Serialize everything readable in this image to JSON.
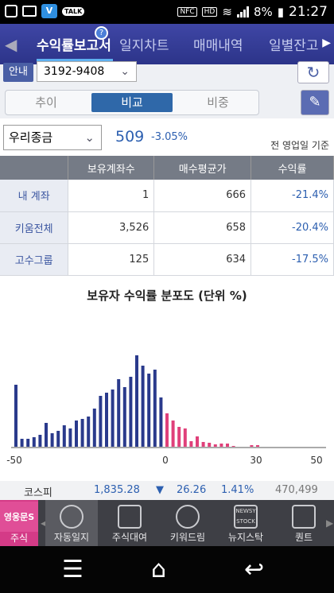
{
  "status": {
    "battery": "8%",
    "time": "21:27",
    "nfc": "NFC",
    "hd": "HD",
    "talk_label": "TALK"
  },
  "tabs": [
    {
      "label": "수익률보고서"
    },
    {
      "label": "일지차트"
    },
    {
      "label": "매매내역"
    },
    {
      "label": "일별잔고"
    }
  ],
  "tab_badge": "?",
  "account": {
    "guide": "안내",
    "number": "3192-9408"
  },
  "segments": [
    {
      "label": "추이"
    },
    {
      "label": "비교"
    },
    {
      "label": "비중"
    }
  ],
  "stock": {
    "name": "우리종금",
    "price": "509",
    "change": "-3.05%",
    "basis": "전 영업일 기준"
  },
  "table": {
    "headers": [
      "",
      "보유계좌수",
      "매수평균가",
      "수익률"
    ],
    "rows": [
      {
        "label": "내 계좌",
        "accounts": "1",
        "avg_price": "666",
        "return": "-21.4%"
      },
      {
        "label": "키움전체",
        "accounts": "3,526",
        "avg_price": "658",
        "return": "-20.4%"
      },
      {
        "label": "고수그룹",
        "accounts": "125",
        "avg_price": "634",
        "return": "-17.5%"
      }
    ]
  },
  "chart_title": "보유자 수익률 분포도 (단위 %)",
  "chart_data": {
    "type": "bar",
    "title": "보유자 수익률 분포도 (단위 %)",
    "xlim": [
      -50,
      50
    ],
    "x_ticks": [
      "-50",
      "0",
      "30",
      "50"
    ],
    "negative_color": "#2a3a8c",
    "positive_color": "#e0407a",
    "x": [
      -50,
      -48,
      -46,
      -44,
      -42,
      -40,
      -38,
      -36,
      -34,
      -32,
      -30,
      -28,
      -26,
      -24,
      -22,
      -20,
      -18,
      -16,
      -14,
      -12,
      -10,
      -8,
      -6,
      -4,
      -2,
      0,
      2,
      4,
      6,
      8,
      10,
      12,
      14,
      16,
      18,
      20,
      22,
      24,
      26,
      28,
      30,
      32,
      34,
      36,
      38,
      40,
      42,
      44,
      46,
      48
    ],
    "values": [
      78,
      10,
      10,
      12,
      15,
      30,
      17,
      20,
      27,
      23,
      33,
      35,
      38,
      48,
      64,
      68,
      72,
      85,
      75,
      88,
      115,
      102,
      92,
      97,
      62,
      42,
      33,
      25,
      23,
      7,
      13,
      6,
      5,
      3,
      4,
      4,
      1,
      0,
      0,
      2,
      2,
      0,
      0,
      0,
      0,
      0,
      0,
      0,
      0,
      0
    ]
  },
  "kospi": {
    "label": "코스피",
    "value": "1,835.28",
    "arrow": "▼",
    "change": "26.26",
    "percent": "1.41%",
    "volume": "470,499"
  },
  "bottom_nav": {
    "logo_text": "영웅문S",
    "logo_label": "주식",
    "items": [
      {
        "label": "자동일지",
        "icon": "lightbulb-icon"
      },
      {
        "label": "주식대여",
        "icon": "won-tv-icon"
      },
      {
        "label": "키워드림",
        "icon": "up-arrow-circle-icon"
      },
      {
        "label": "뉴지스탁",
        "icon": "newsy-stock-icon"
      },
      {
        "label": "퀀트",
        "icon": "chart-card-icon"
      }
    ],
    "newsy_text": "NEWSY STOCK"
  }
}
